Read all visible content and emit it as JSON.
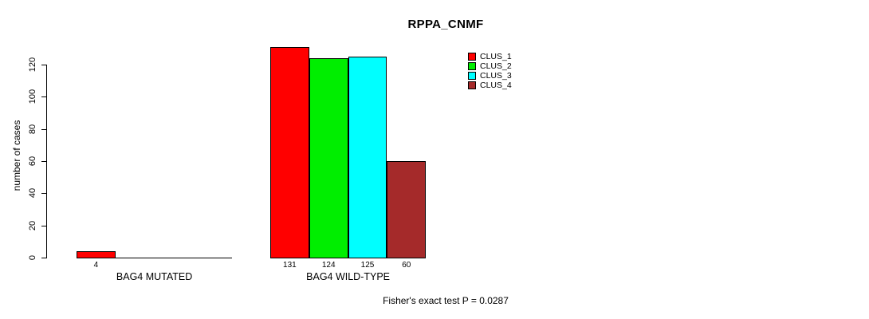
{
  "figure": {
    "title": "RPPA_CNMF",
    "y_axis_label": "number of cases",
    "footer_note": "Fisher's exact test P = 0.0287"
  },
  "legend": {
    "items": [
      {
        "label": "CLUS_1",
        "color": "#FF0000"
      },
      {
        "label": "CLUS_2",
        "color": "#00EE00"
      },
      {
        "label": "CLUS_3",
        "color": "#00FFFF"
      },
      {
        "label": "CLUS_4",
        "color": "#A52A2A"
      }
    ]
  },
  "chart_data": {
    "type": "bar",
    "title": "RPPA_CNMF",
    "xlabel": "",
    "ylabel": "number of cases",
    "categories": [
      "BAG4 MUTATED",
      "BAG4 WILD-TYPE"
    ],
    "series": [
      {
        "name": "CLUS_1",
        "color": "#FF0000",
        "values": [
          4,
          131
        ]
      },
      {
        "name": "CLUS_2",
        "color": "#00EE00",
        "values": [
          0,
          124
        ]
      },
      {
        "name": "CLUS_3",
        "color": "#00FFFF",
        "values": [
          0,
          125
        ]
      },
      {
        "name": "CLUS_4",
        "color": "#A52A2A",
        "values": [
          0,
          60
        ]
      }
    ],
    "bar_value_labels_shown": true,
    "yticks": [
      0,
      20,
      40,
      60,
      80,
      100,
      120
    ],
    "ylim": [
      0,
      131
    ],
    "grid": false,
    "legend_position": "inside-top-middle",
    "annotation": "Fisher's exact test P = 0.0287"
  }
}
